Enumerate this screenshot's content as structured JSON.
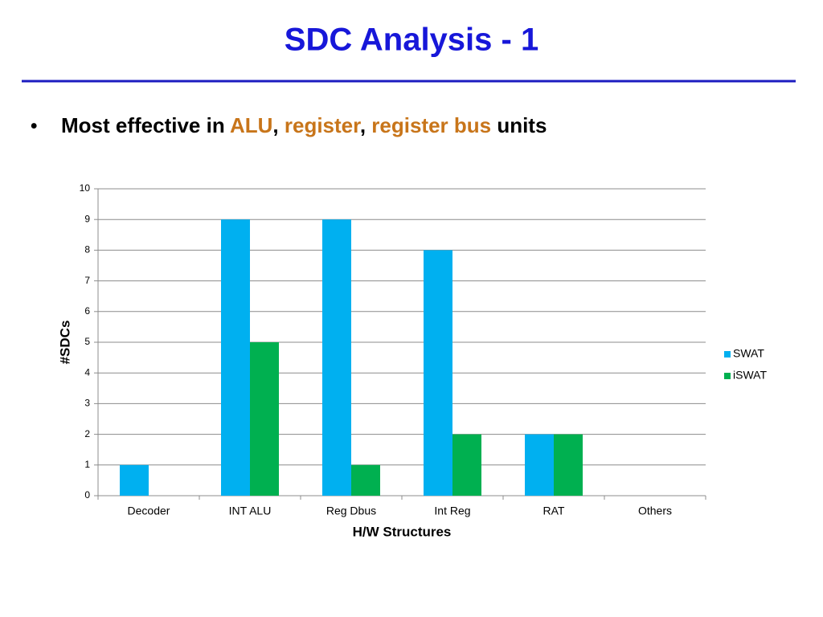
{
  "slide": {
    "title": "SDC Analysis - 1",
    "bullet": "•",
    "bullet_text": [
      {
        "text": "Most effective in ",
        "color": "#000000"
      },
      {
        "text": "ALU",
        "color": "#c8751a"
      },
      {
        "text": ", ",
        "color": "#000000"
      },
      {
        "text": "register",
        "color": "#c8751a"
      },
      {
        "text": ", ",
        "color": "#000000"
      },
      {
        "text": "register bus",
        "color": "#c8751a"
      },
      {
        "text": " units",
        "color": "#000000"
      }
    ]
  },
  "chart_data": {
    "type": "bar",
    "x_label": "H/W Structures",
    "y_label": "#SDCs",
    "categories": [
      "Decoder",
      "INT ALU",
      "Reg Dbus",
      "Int Reg",
      "RAT",
      "Others"
    ],
    "series": [
      {
        "name": "SWAT",
        "color": "#00b0f0",
        "values": [
          1,
          9,
          9,
          8,
          2,
          0
        ]
      },
      {
        "name": "iSWAT",
        "color": "#00b050",
        "values": [
          0,
          5,
          1,
          2,
          2,
          0
        ]
      }
    ],
    "ylim": [
      0,
      10
    ],
    "yticks": [
      0,
      1,
      2,
      3,
      4,
      5,
      6,
      7,
      8,
      9,
      10
    ],
    "grid": true,
    "legend": "right"
  }
}
